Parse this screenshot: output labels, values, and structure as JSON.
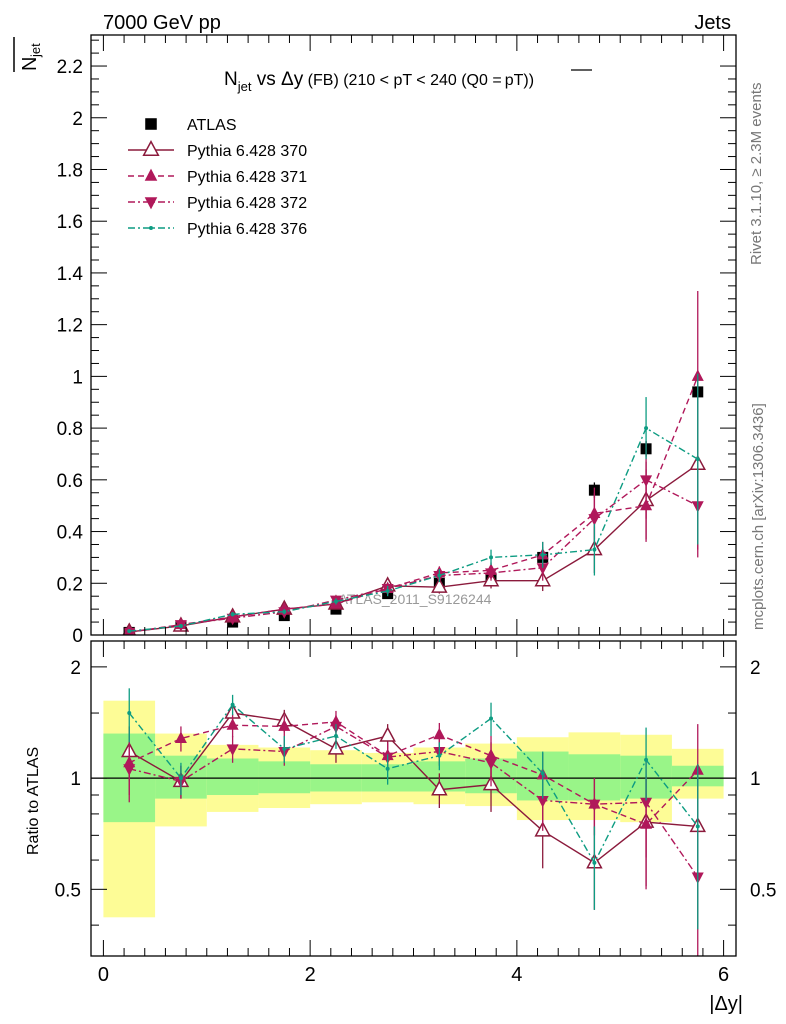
{
  "header": {
    "left": "7000 GeV pp",
    "right": "Jets"
  },
  "side_labels": {
    "rivet": "Rivet 3.1.10, ≥ 2.3M events",
    "mcplots": "mcplots.cern.ch [arXiv:1306.3436]"
  },
  "watermark": "ATLAS_2011_S9126244",
  "chart_data": [
    {
      "type": "scatter",
      "panel": "main",
      "title": "N_jet vs Δy (FB) (210 < pT < 240 (Q0 = pT̅))",
      "title_parts": {
        "n": "N",
        "n_sub": "jet",
        "vs": " vs Δy",
        "fb": " (FB)",
        "cut": " (210 < pT < 240 (Q0 =",
        "qbar": "pT",
        "close": "))"
      },
      "ylabel": "N̅_jet",
      "ylabel_parts": {
        "n": "N",
        "sub": "jet"
      },
      "xlim": [
        -0.12,
        6.12
      ],
      "ylim": [
        0,
        2.32
      ],
      "yticks": [
        0,
        0.2,
        0.4,
        0.6,
        0.8,
        1,
        1.2,
        1.4,
        1.6,
        1.8,
        2,
        2.2
      ],
      "ytick_labels": [
        "0",
        "0.2",
        "0.4",
        "0.6",
        "0.8",
        "1",
        "1.2",
        "1.4",
        "1.6",
        "1.8",
        "2",
        "2.2"
      ],
      "x": [
        0.25,
        0.75,
        1.25,
        1.75,
        2.25,
        2.75,
        3.25,
        3.75,
        4.25,
        4.75,
        5.25,
        5.75
      ],
      "legend_position": "top-left",
      "series": [
        {
          "name": "ATLAS",
          "color": "#000000",
          "marker": "square",
          "line": "none",
          "values": [
            0.01,
            0.035,
            0.05,
            0.075,
            0.1,
            0.16,
            0.2,
            0.22,
            0.3,
            0.56,
            0.72,
            0.94
          ],
          "errors": [
            0.003,
            0.005,
            0.006,
            0.008,
            0.01,
            0.015,
            0.02,
            0.02,
            0.04,
            0.03,
            0.03,
            0.03
          ]
        },
        {
          "name": "Pythia 6.428 370",
          "color": "#8b1a3c",
          "marker": "open-triangle-up",
          "line": "solid",
          "values": [
            0.012,
            0.035,
            0.07,
            0.1,
            0.12,
            0.19,
            0.185,
            0.21,
            0.21,
            0.33,
            0.52,
            0.66
          ],
          "errors": [
            0.003,
            0.005,
            0.008,
            0.01,
            0.012,
            0.02,
            0.025,
            0.03,
            0.04,
            0.09,
            0.15,
            0.33
          ]
        },
        {
          "name": "Pythia 6.428 371",
          "color": "#b0185a",
          "marker": "filled-triangle-up",
          "line": "dashed",
          "values": [
            0.011,
            0.04,
            0.07,
            0.1,
            0.12,
            0.18,
            0.24,
            0.25,
            0.31,
            0.47,
            0.5,
            1.0
          ],
          "errors": [
            0.003,
            0.005,
            0.008,
            0.01,
            0.012,
            0.02,
            0.025,
            0.03,
            0.05,
            0.1,
            0.14,
            0.33
          ]
        },
        {
          "name": "Pythia 6.428 372",
          "color": "#b0185a",
          "marker": "filled-triangle-down",
          "line": "dash-dot",
          "values": [
            0.01,
            0.04,
            0.065,
            0.09,
            0.135,
            0.18,
            0.23,
            0.24,
            0.26,
            0.45,
            0.6,
            0.5
          ],
          "errors": [
            0.003,
            0.005,
            0.008,
            0.01,
            0.012,
            0.02,
            0.025,
            0.03,
            0.05,
            0.1,
            0.15,
            0.2
          ]
        },
        {
          "name": "Pythia 6.428 376",
          "color": "#0d9c82",
          "marker": "small-dot",
          "line": "dash-dot",
          "values": [
            0.015,
            0.035,
            0.08,
            0.09,
            0.13,
            0.17,
            0.23,
            0.3,
            0.31,
            0.33,
            0.8,
            0.68
          ],
          "errors": [
            0.003,
            0.005,
            0.008,
            0.01,
            0.012,
            0.02,
            0.025,
            0.03,
            0.05,
            0.1,
            0.12,
            0.33
          ]
        }
      ]
    },
    {
      "type": "scatter",
      "panel": "ratio",
      "xlabel": "|Δy|",
      "ylabel": "Ratio to ATLAS",
      "xlim": [
        -0.12,
        6.12
      ],
      "ylim": [
        0.33,
        2.35
      ],
      "yscale": "log",
      "xticks": [
        0,
        2,
        4,
        6
      ],
      "xtick_labels": [
        "0",
        "2",
        "4",
        "6"
      ],
      "yticks": [
        0.5,
        1,
        2
      ],
      "ytick_labels": [
        "0.5",
        "1",
        "2"
      ],
      "bin_edges": [
        0,
        0.5,
        1,
        1.5,
        2,
        2.5,
        3,
        3.5,
        4,
        4.5,
        5,
        5.5,
        6
      ],
      "band_1sigma": {
        "color": "#99f588",
        "low": [
          0.76,
          0.88,
          0.9,
          0.91,
          0.92,
          0.92,
          0.92,
          0.91,
          0.87,
          0.87,
          0.88,
          0.95
        ],
        "high": [
          1.32,
          1.15,
          1.13,
          1.11,
          1.09,
          1.09,
          1.11,
          1.13,
          1.18,
          1.16,
          1.15,
          1.08
        ]
      },
      "band_2sigma": {
        "color": "#fdfc96",
        "low": [
          0.42,
          0.74,
          0.81,
          0.83,
          0.85,
          0.86,
          0.85,
          0.84,
          0.77,
          0.77,
          0.76,
          0.88
        ],
        "high": [
          1.62,
          1.32,
          1.23,
          1.21,
          1.19,
          1.17,
          1.21,
          1.24,
          1.29,
          1.33,
          1.31,
          1.2
        ]
      },
      "series": [
        {
          "name": "Pythia 6.428 370",
          "values": [
            1.18,
            0.98,
            1.5,
            1.43,
            1.2,
            1.3,
            0.93,
            0.96,
            0.72,
            0.59,
            0.76,
            0.74
          ],
          "errors": [
            0.2,
            0.1,
            0.1,
            0.1,
            0.1,
            0.1,
            0.1,
            0.15,
            0.15,
            0.15,
            0.25,
            0.35
          ]
        },
        {
          "name": "Pythia 6.428 371",
          "values": [
            1.1,
            1.28,
            1.39,
            1.38,
            1.42,
            1.15,
            1.31,
            1.15,
            1.02,
            0.85,
            0.75,
            1.05
          ],
          "errors": [
            0.2,
            0.1,
            0.1,
            0.1,
            0.1,
            0.1,
            0.1,
            0.15,
            0.15,
            0.15,
            0.25,
            0.35
          ]
        },
        {
          "name": "Pythia 6.428 372",
          "values": [
            1.06,
            0.98,
            1.2,
            1.18,
            1.38,
            1.14,
            1.18,
            1.1,
            0.87,
            0.85,
            0.86,
            0.54
          ],
          "errors": [
            0.2,
            0.1,
            0.1,
            0.1,
            0.1,
            0.1,
            0.1,
            0.15,
            0.15,
            0.15,
            0.25,
            0.25
          ]
        },
        {
          "name": "Pythia 6.428 376",
          "values": [
            1.5,
            1.0,
            1.58,
            1.2,
            1.3,
            1.06,
            1.15,
            1.45,
            1.03,
            0.59,
            1.12,
            0.74
          ],
          "errors": [
            0.25,
            0.1,
            0.1,
            0.1,
            0.1,
            0.1,
            0.1,
            0.15,
            0.15,
            0.15,
            0.25,
            0.35
          ]
        }
      ]
    }
  ]
}
